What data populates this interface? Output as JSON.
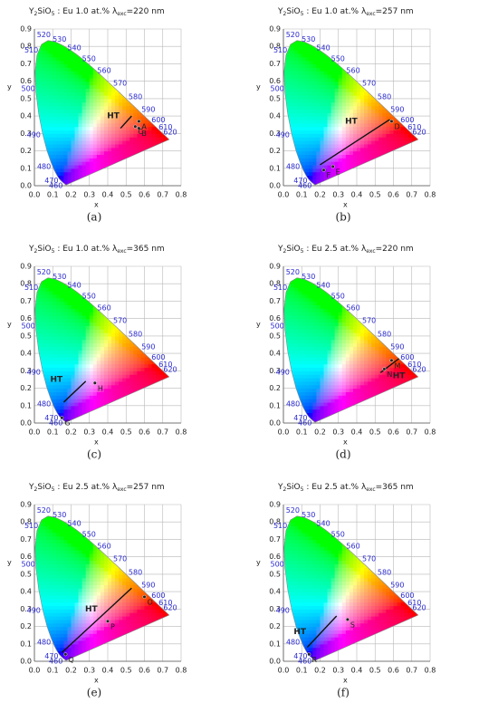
{
  "chart_data": [
    {
      "type": "scatter",
      "title_parts": [
        "Y",
        "2",
        "SiO",
        "5",
        " : Eu 1.0 at.% λ",
        "exc",
        "=220 nm"
      ],
      "caption": "(a)",
      "xlabel": "x",
      "ylabel": "y",
      "xlim": [
        0,
        0.8
      ],
      "ylim": [
        0,
        0.9
      ],
      "xticks": [
        {
          "value": 0,
          "label": "0.0"
        },
        {
          "value": 0.1,
          "label": "0.1"
        },
        {
          "value": 0.2,
          "label": "0.2"
        },
        {
          "value": 0.3,
          "label": "0.3"
        },
        {
          "value": 0.4,
          "label": "0.4"
        },
        {
          "value": 0.5,
          "label": "0.5"
        },
        {
          "value": 0.6,
          "label": "0.6"
        },
        {
          "value": 0.7,
          "label": "0.7"
        },
        {
          "value": 0.8,
          "label": "0.8"
        }
      ],
      "yticks": [
        {
          "value": 0,
          "label": "0.0"
        },
        {
          "value": 0.1,
          "label": "0.1"
        },
        {
          "value": 0.2,
          "label": "0.2"
        },
        {
          "value": 0.3,
          "label": "0.3"
        },
        {
          "value": 0.4,
          "label": "0.4"
        },
        {
          "value": 0.5,
          "label": "0.5"
        },
        {
          "value": 0.6,
          "label": "0.6"
        },
        {
          "value": 0.7,
          "label": "0.7"
        },
        {
          "value": 0.8,
          "label": "0.8"
        },
        {
          "value": 0.9,
          "label": "0.9"
        }
      ],
      "grid": true,
      "wavelength_labels": [
        "460",
        "470",
        "480",
        "490",
        "500",
        "510",
        "520",
        "530",
        "540",
        "550",
        "560",
        "570",
        "580",
        "590",
        "600",
        "610",
        "620"
      ],
      "points": {
        "labels": [
          "A",
          "B",
          "C"
        ],
        "x": [
          0.57,
          0.57,
          0.55
        ],
        "y": [
          0.37,
          0.33,
          0.34
        ]
      },
      "ht": {
        "label": "HT",
        "x": [
          0.53,
          0.47
        ],
        "y": [
          0.4,
          0.33
        ]
      },
      "ht_label_at": [
        0.43,
        0.4
      ]
    },
    {
      "type": "scatter",
      "title_parts": [
        "Y",
        "2",
        "SiO",
        "5",
        " : Eu 1.0 at.% λ",
        "exc",
        "=257 nm"
      ],
      "caption": "(b)",
      "xlabel": "x",
      "ylabel": "y",
      "xlim": [
        0,
        0.8
      ],
      "ylim": [
        0,
        0.9
      ],
      "xticks": [
        {
          "value": 0,
          "label": "0.0"
        },
        {
          "value": 0.1,
          "label": "0.1"
        },
        {
          "value": 0.2,
          "label": "0.2"
        },
        {
          "value": 0.3,
          "label": "0.3"
        },
        {
          "value": 0.4,
          "label": "0.4"
        },
        {
          "value": 0.5,
          "label": "0.5"
        },
        {
          "value": 0.6,
          "label": "0.6"
        },
        {
          "value": 0.7,
          "label": "0.7"
        },
        {
          "value": 0.8,
          "label": "0.8"
        }
      ],
      "yticks": [
        {
          "value": 0,
          "label": "0.0"
        },
        {
          "value": 0.1,
          "label": "0.1"
        },
        {
          "value": 0.2,
          "label": "0.2"
        },
        {
          "value": 0.3,
          "label": "0.3"
        },
        {
          "value": 0.4,
          "label": "0.4"
        },
        {
          "value": 0.5,
          "label": "0.5"
        },
        {
          "value": 0.6,
          "label": "0.6"
        },
        {
          "value": 0.7,
          "label": "0.7"
        },
        {
          "value": 0.8,
          "label": "0.8"
        },
        {
          "value": 0.9,
          "label": "0.9"
        }
      ],
      "grid": true,
      "wavelength_labels": [
        "460",
        "470",
        "480",
        "490",
        "500",
        "510",
        "520",
        "530",
        "540",
        "550",
        "560",
        "570",
        "580",
        "590",
        "600",
        "610",
        "620"
      ],
      "points": {
        "labels": [
          "D",
          "E",
          "F"
        ],
        "x": [
          0.59,
          0.27,
          0.22
        ],
        "y": [
          0.37,
          0.11,
          0.09
        ]
      },
      "ht": {
        "label": "HT",
        "x": [
          0.2,
          0.58
        ],
        "y": [
          0.12,
          0.38
        ]
      },
      "ht_label_at": [
        0.37,
        0.37
      ]
    },
    {
      "type": "scatter",
      "title_parts": [
        "Y",
        "2",
        "SiO",
        "5",
        " : Eu 1.0 at.% λ",
        "exc",
        "=365 nm"
      ],
      "caption": "(c)",
      "xlabel": "x",
      "ylabel": "y",
      "xlim": [
        0,
        0.8
      ],
      "ylim": [
        0,
        0.9
      ],
      "xticks": [
        {
          "value": 0,
          "label": "0.0"
        },
        {
          "value": 0.1,
          "label": "0.1"
        },
        {
          "value": 0.2,
          "label": "0.2"
        },
        {
          "value": 0.3,
          "label": "0.3"
        },
        {
          "value": 0.4,
          "label": "0.4"
        },
        {
          "value": 0.5,
          "label": "0.5"
        },
        {
          "value": 0.6,
          "label": "0.6"
        },
        {
          "value": 0.7,
          "label": "0.7"
        },
        {
          "value": 0.8,
          "label": "0.8"
        }
      ],
      "yticks": [
        {
          "value": 0,
          "label": "0.0"
        },
        {
          "value": 0.1,
          "label": "0.1"
        },
        {
          "value": 0.2,
          "label": "0.2"
        },
        {
          "value": 0.3,
          "label": "0.3"
        },
        {
          "value": 0.4,
          "label": "0.4"
        },
        {
          "value": 0.5,
          "label": "0.5"
        },
        {
          "value": 0.6,
          "label": "0.6"
        },
        {
          "value": 0.7,
          "label": "0.7"
        },
        {
          "value": 0.8,
          "label": "0.8"
        },
        {
          "value": 0.9,
          "label": "0.9"
        }
      ],
      "grid": true,
      "wavelength_labels": [
        "460",
        "470",
        "480",
        "490",
        "500",
        "510",
        "520",
        "530",
        "540",
        "550",
        "560",
        "570",
        "580",
        "590",
        "600",
        "610",
        "620"
      ],
      "points": {
        "labels": [
          "G",
          "H"
        ],
        "x": [
          0.15,
          0.33
        ],
        "y": [
          0.03,
          0.23
        ]
      },
      "ht": {
        "label": "HT",
        "x": [
          0.16,
          0.28
        ],
        "y": [
          0.12,
          0.24
        ]
      },
      "ht_label_at": [
        0.12,
        0.25
      ]
    },
    {
      "type": "scatter",
      "title_parts": [
        "Y",
        "2",
        "SiO",
        "5",
        " : Eu 2.5 at.% λ",
        "exc",
        "=220 nm"
      ],
      "caption": "(d)",
      "xlabel": "x",
      "ylabel": "y",
      "xlim": [
        0,
        0.8
      ],
      "ylim": [
        0,
        0.9
      ],
      "xticks": [
        {
          "value": 0,
          "label": "0.0"
        },
        {
          "value": 0.1,
          "label": "0.1"
        },
        {
          "value": 0.2,
          "label": "0.2"
        },
        {
          "value": 0.3,
          "label": "0.3"
        },
        {
          "value": 0.4,
          "label": "0.4"
        },
        {
          "value": 0.5,
          "label": "0.5"
        },
        {
          "value": 0.6,
          "label": "0.6"
        },
        {
          "value": 0.7,
          "label": "0.7"
        },
        {
          "value": 0.8,
          "label": "0.8"
        }
      ],
      "yticks": [
        {
          "value": 0,
          "label": "0.0"
        },
        {
          "value": 0.1,
          "label": "0.1"
        },
        {
          "value": 0.2,
          "label": "0.2"
        },
        {
          "value": 0.3,
          "label": "0.3"
        },
        {
          "value": 0.4,
          "label": "0.4"
        },
        {
          "value": 0.5,
          "label": "0.5"
        },
        {
          "value": 0.6,
          "label": "0.6"
        },
        {
          "value": 0.7,
          "label": "0.7"
        },
        {
          "value": 0.8,
          "label": "0.8"
        },
        {
          "value": 0.9,
          "label": "0.9"
        }
      ],
      "grid": true,
      "wavelength_labels": [
        "460",
        "470",
        "480",
        "490",
        "500",
        "510",
        "520",
        "530",
        "540",
        "550",
        "560",
        "570",
        "580",
        "590",
        "600",
        "610",
        "620"
      ],
      "points": {
        "labels": [
          "M",
          "N"
        ],
        "x": [
          0.59,
          0.55
        ],
        "y": [
          0.36,
          0.31
        ]
      },
      "ht": {
        "label": "HT",
        "x": [
          0.53,
          0.63
        ],
        "y": [
          0.29,
          0.37
        ]
      },
      "ht_label_at": [
        0.63,
        0.27
      ]
    },
    {
      "type": "scatter",
      "title_parts": [
        "Y",
        "2",
        "SiO",
        "5",
        " : Eu 2.5 at.% λ",
        "exc",
        "=257 nm"
      ],
      "caption": "(e)",
      "xlabel": "x",
      "ylabel": "y",
      "xlim": [
        0,
        0.8
      ],
      "ylim": [
        0,
        0.9
      ],
      "xticks": [
        {
          "value": 0,
          "label": "0.0"
        },
        {
          "value": 0.1,
          "label": "0.1"
        },
        {
          "value": 0.2,
          "label": "0.2"
        },
        {
          "value": 0.3,
          "label": "0.3"
        },
        {
          "value": 0.4,
          "label": "0.4"
        },
        {
          "value": 0.5,
          "label": "0.5"
        },
        {
          "value": 0.6,
          "label": "0.6"
        },
        {
          "value": 0.7,
          "label": "0.7"
        },
        {
          "value": 0.8,
          "label": "0.8"
        }
      ],
      "yticks": [
        {
          "value": 0,
          "label": "0.0"
        },
        {
          "value": 0.1,
          "label": "0.1"
        },
        {
          "value": 0.2,
          "label": "0.2"
        },
        {
          "value": 0.3,
          "label": "0.3"
        },
        {
          "value": 0.4,
          "label": "0.4"
        },
        {
          "value": 0.5,
          "label": "0.5"
        },
        {
          "value": 0.6,
          "label": "0.6"
        },
        {
          "value": 0.7,
          "label": "0.7"
        },
        {
          "value": 0.8,
          "label": "0.8"
        },
        {
          "value": 0.9,
          "label": "0.9"
        }
      ],
      "grid": true,
      "wavelength_labels": [
        "460",
        "470",
        "480",
        "490",
        "500",
        "510",
        "520",
        "530",
        "540",
        "550",
        "560",
        "570",
        "580",
        "590",
        "600",
        "610",
        "620"
      ],
      "points": {
        "labels": [
          "O",
          "P",
          "Q"
        ],
        "x": [
          0.6,
          0.4,
          0.17
        ],
        "y": [
          0.37,
          0.23,
          0.04
        ]
      },
      "ht": {
        "label": "HT",
        "x": [
          0.15,
          0.53
        ],
        "y": [
          0.05,
          0.42
        ]
      },
      "ht_label_at": [
        0.31,
        0.3
      ]
    },
    {
      "type": "scatter",
      "title_parts": [
        "Y",
        "2",
        "SiO",
        "5",
        " : Eu 2.5 at.% λ",
        "exc",
        "=365 nm"
      ],
      "caption": "(f)",
      "xlabel": "x",
      "ylabel": "y",
      "xlim": [
        0,
        0.8
      ],
      "ylim": [
        0,
        0.9
      ],
      "xticks": [
        {
          "value": 0,
          "label": "0.0"
        },
        {
          "value": 0.1,
          "label": "0.1"
        },
        {
          "value": 0.2,
          "label": "0.2"
        },
        {
          "value": 0.3,
          "label": "0.3"
        },
        {
          "value": 0.4,
          "label": "0.4"
        },
        {
          "value": 0.5,
          "label": "0.5"
        },
        {
          "value": 0.6,
          "label": "0.6"
        },
        {
          "value": 0.7,
          "label": "0.7"
        },
        {
          "value": 0.8,
          "label": "0.8"
        }
      ],
      "yticks": [
        {
          "value": 0,
          "label": "0.0"
        },
        {
          "value": 0.1,
          "label": "0.1"
        },
        {
          "value": 0.2,
          "label": "0.2"
        },
        {
          "value": 0.3,
          "label": "0.3"
        },
        {
          "value": 0.4,
          "label": "0.4"
        },
        {
          "value": 0.5,
          "label": "0.5"
        },
        {
          "value": 0.6,
          "label": "0.6"
        },
        {
          "value": 0.7,
          "label": "0.7"
        },
        {
          "value": 0.8,
          "label": "0.8"
        },
        {
          "value": 0.9,
          "label": "0.9"
        }
      ],
      "grid": true,
      "wavelength_labels": [
        "460",
        "470",
        "480",
        "490",
        "500",
        "510",
        "520",
        "530",
        "540",
        "550",
        "560",
        "570",
        "580",
        "590",
        "600",
        "610",
        "620"
      ],
      "points": {
        "labels": [
          "R",
          "S"
        ],
        "x": [
          0.14,
          0.35
        ],
        "y": [
          0.04,
          0.24
        ]
      },
      "ht": {
        "label": "HT",
        "x": [
          0.13,
          0.29
        ],
        "y": [
          0.08,
          0.26
        ]
      },
      "ht_label_at": [
        0.09,
        0.17
      ]
    }
  ]
}
